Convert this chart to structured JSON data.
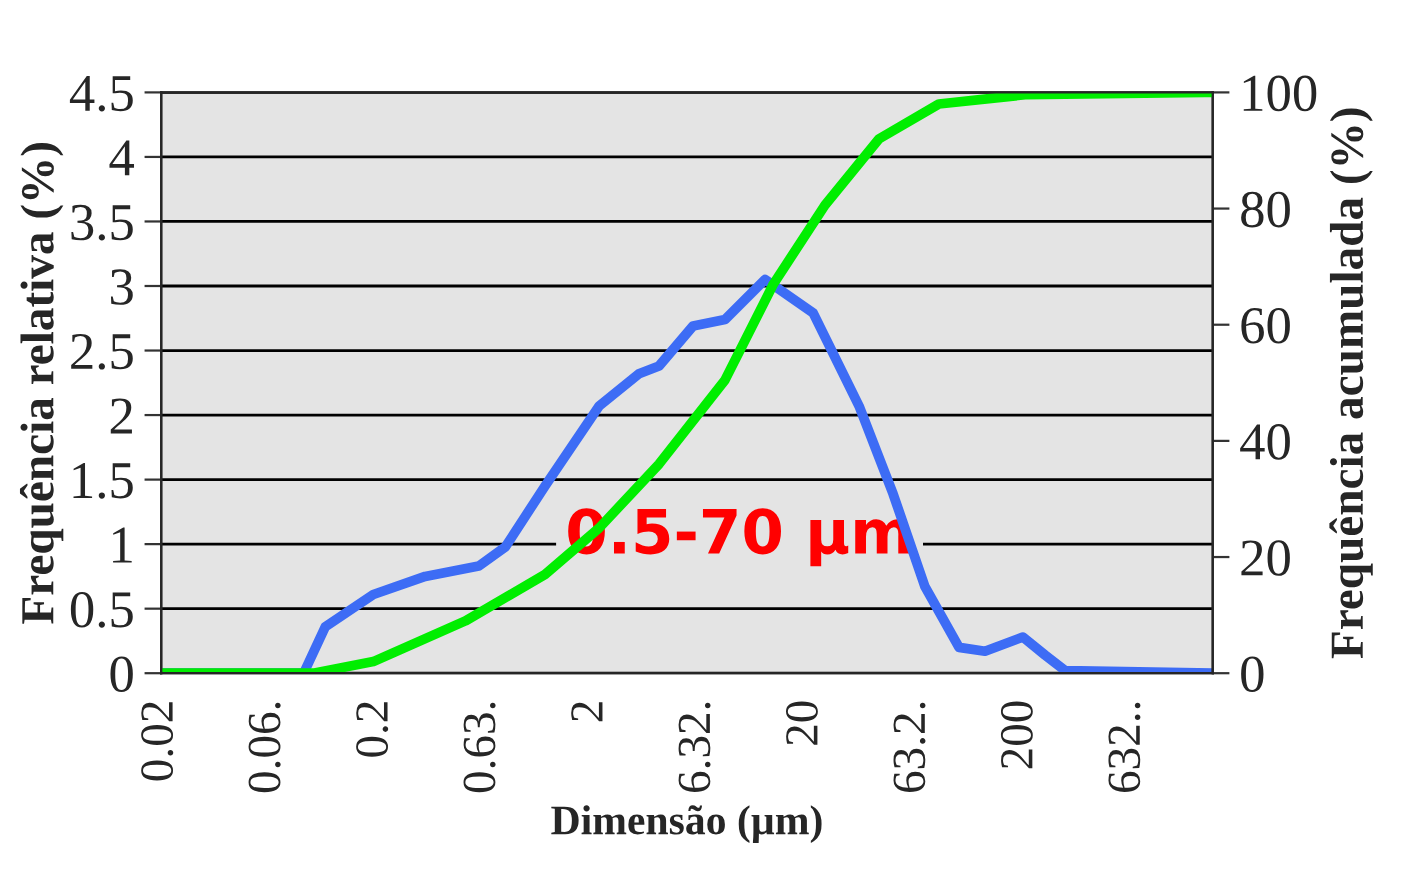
{
  "chart_data": {
    "type": "line",
    "xlabel": "Dimensão (µm)",
    "ylabel": "Frequência relativa (%)",
    "y2label": "Frequência acumulada (%)",
    "log": "x",
    "grid": "y",
    "marker": "none",
    "line_style": "solid",
    "xlim": [
      0.02,
      1560
    ],
    "xticks": [
      {
        "value": 0.02,
        "label": "0.02"
      },
      {
        "value": 0.0632,
        "label": "0.06."
      },
      {
        "value": 0.2,
        "label": "0.2"
      },
      {
        "value": 0.632,
        "label": "0.63."
      },
      {
        "value": 2,
        "label": "2"
      },
      {
        "value": 6.32,
        "label": "6.32."
      },
      {
        "value": 20,
        "label": "20"
      },
      {
        "value": 63.2,
        "label": "63.2."
      },
      {
        "value": 200,
        "label": "200"
      },
      {
        "value": 632,
        "label": "632.."
      }
    ],
    "ylim": [
      0,
      4.5
    ],
    "yticks": [
      0,
      0.5,
      1,
      1.5,
      2,
      2.5,
      3,
      3.5,
      4,
      4.5
    ],
    "y2lim": [
      0,
      100
    ],
    "y2ticks": [
      0,
      20,
      40,
      60,
      80,
      100
    ],
    "series": [
      {
        "color": "#3d6cf5",
        "axis": "y",
        "x": [
          0.02,
          0.092,
          0.116,
          0.194,
          0.338,
          0.6,
          0.8,
          1.22,
          2.18,
          3.34,
          4.14,
          5.96,
          8.4,
          12.9,
          21.6,
          35.3,
          50.8,
          71.5,
          103,
          136,
          204,
          259,
          321,
          1560
        ],
        "values": [
          0,
          0,
          0.36,
          0.61,
          0.75,
          0.83,
          0.98,
          1.45,
          2.07,
          2.32,
          2.38,
          2.69,
          2.74,
          3.05,
          2.79,
          2.07,
          1.39,
          0.67,
          0.2,
          0.17,
          0.28,
          0.14,
          0.02,
          0
        ]
      },
      {
        "color": "#00ee00",
        "axis": "y2",
        "x": [
          0.02,
          0.102,
          0.194,
          0.52,
          1.22,
          2.18,
          4.14,
          8.4,
          14.1,
          24.5,
          43.7,
          83,
          209,
          1435,
          1560
        ],
        "values": [
          0,
          0,
          2,
          9,
          17,
          25,
          36,
          50.5,
          67,
          80.6,
          92,
          98,
          99.6,
          100,
          100
        ]
      }
    ],
    "annotations": [
      "0.5-70 µm"
    ]
  }
}
